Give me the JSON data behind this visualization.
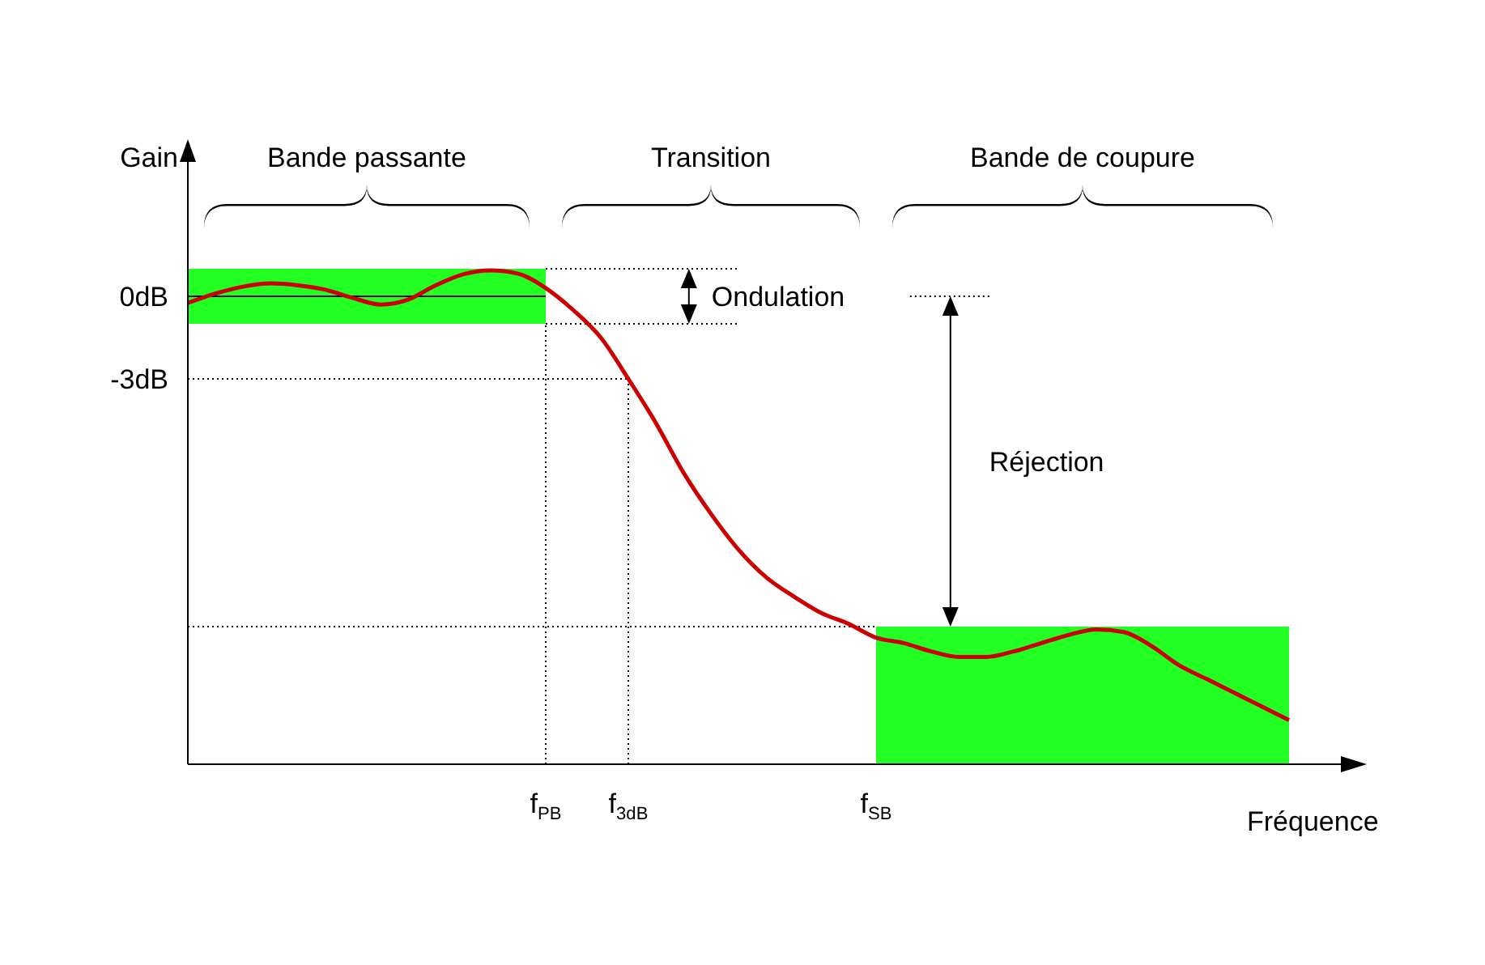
{
  "chart_data": {
    "type": "line",
    "xlabel": "Fréquence",
    "ylabel": "Gain",
    "categories": [
      null,
      null,
      null,
      null,
      null,
      null,
      null,
      null,
      null,
      null,
      null,
      null,
      null,
      "f$_{PB}$",
      null,
      null,
      "f$_{3dB}$",
      null,
      null,
      null,
      null,
      null,
      null,
      null,
      null,
      "f$_{SB}$",
      null,
      null,
      null,
      null,
      null,
      null,
      null,
      null,
      null,
      null,
      null,
      null,
      null,
      null,
      null,
      null,
      null
    ],
    "series": [
      {
        "color": "#cc0000",
        "values": [
          -0.24,
          0.1,
          0.35,
          0.47,
          0.4,
          0.24,
          -0.06,
          -0.3,
          -0.12,
          0.4,
          0.8,
          0.94,
          0.82,
          0.3,
          -0.5,
          -1.5,
          -3,
          -4.6,
          -6.4,
          -7.9,
          -9.2,
          -10.2,
          -10.9,
          -11.5,
          -11.9,
          -12.4,
          -12.6,
          -12.9,
          -13.1,
          -13.1,
          -12.9,
          -12.6,
          -12.3,
          -12.1,
          -12.2,
          -12.7,
          -13.4,
          -13.9,
          -14.4,
          -14.9,
          -15.4,
          null,
          null
        ],
        "lower": [
          -1,
          -1,
          -1,
          -1,
          -1,
          -1,
          -1,
          -1,
          -1,
          -1,
          -1,
          -1,
          -1,
          -1,
          null,
          null,
          null,
          null,
          null,
          null,
          null,
          null,
          null,
          null,
          null,
          -17,
          -17,
          -17,
          -17,
          -17,
          -17,
          -17,
          -17,
          -17,
          -17,
          -17,
          -17,
          -17,
          -17,
          -17,
          -17,
          null,
          null
        ],
        "upper": [
          1,
          1,
          1,
          1,
          1,
          1,
          1,
          1,
          1,
          1,
          1,
          1,
          1,
          1,
          null,
          null,
          null,
          null,
          null,
          null,
          null,
          null,
          null,
          null,
          null,
          -12,
          -12,
          -12,
          -12,
          -12,
          -12,
          -12,
          -12,
          -12,
          -12,
          -12,
          -12,
          -12,
          -12,
          -12,
          -12,
          null,
          null
        ]
      }
    ],
    "ylim": [
      -17,
      5
    ],
    "yticks": [
      {
        "value": 0,
        "label": "0dB"
      },
      {
        "value": -3,
        "label": "-3dB"
      }
    ],
    "ref_lines": [
      {
        "axis": "y",
        "value": 1,
        "line_style": "dotted"
      },
      {
        "axis": "y",
        "value": -1,
        "line_style": "dotted"
      },
      {
        "axis": "y",
        "value": -3,
        "line_style": "dotted"
      },
      {
        "axis": "y",
        "value": -12,
        "line_style": "dotted"
      },
      {
        "axis": "x",
        "value": "f$_{PB}$",
        "line_style": "dotted"
      },
      {
        "axis": "x",
        "value": "f$_{3dB}$",
        "line_style": "dotted"
      },
      {
        "axis": "y",
        "value": 0,
        "line_style": "solid"
      }
    ],
    "annotations": [
      "Bande passante",
      "Transition",
      "Bande de coupure",
      "Ondulation",
      "Réjection"
    ]
  }
}
